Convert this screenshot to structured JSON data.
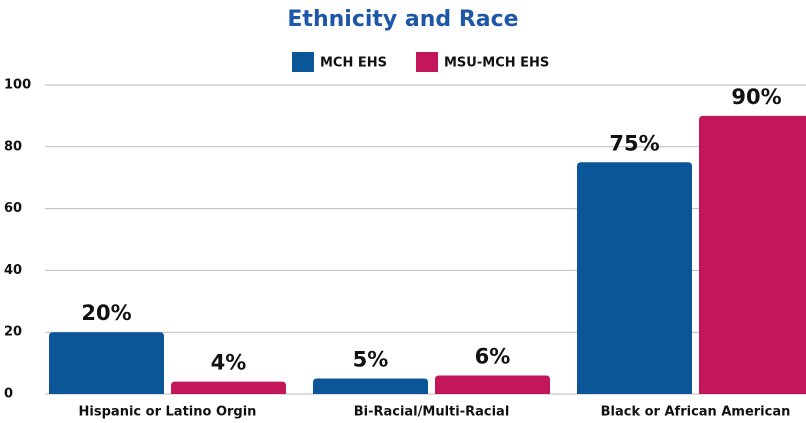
{
  "chart_data": {
    "type": "bar",
    "title": "Ethnicity and Race",
    "categories": [
      "Hispanic or Latino Orgin",
      "Bi-Racial/Multi-Racial",
      "Black or African American"
    ],
    "series": [
      {
        "name": "MCH EHS",
        "color": "#0b5599",
        "values": [
          20,
          5,
          75
        ],
        "value_labels": [
          "20%",
          "5%",
          "75%"
        ]
      },
      {
        "name": "MSU-MCH EHS",
        "color": "#c2185b",
        "values": [
          4,
          6,
          90
        ],
        "value_labels": [
          "4%",
          "6%",
          "90%"
        ]
      }
    ],
    "ylim": [
      0,
      100
    ],
    "yticks": [
      0,
      20,
      40,
      60,
      80,
      100
    ],
    "grid": true,
    "legend": "top"
  }
}
